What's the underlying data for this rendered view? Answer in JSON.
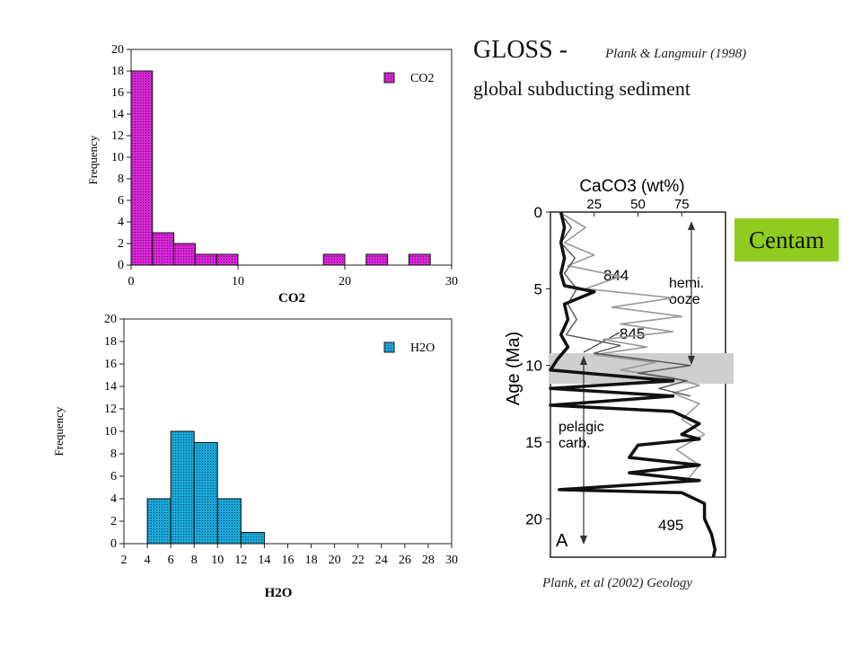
{
  "header": {
    "title": "GLOSS -",
    "citation": "Plank & Langmuir (1998)",
    "subtitle": "global subducting sediment"
  },
  "footer": {
    "citation": "Plank, et al (2002) Geology"
  },
  "badge": {
    "label": "Centam",
    "color": "#8fcc1f"
  },
  "chart_data": [
    {
      "type": "bar",
      "title": "",
      "xlabel": "CO2",
      "ylabel": "Frequency",
      "legend": [
        "CO2"
      ],
      "legend_position": "top-right",
      "color": "#d626d6",
      "xlim": [
        0,
        30
      ],
      "ylim": [
        0,
        20
      ],
      "x_ticks": [
        0,
        10,
        20,
        30
      ],
      "y_ticks": [
        0,
        2,
        4,
        6,
        8,
        10,
        12,
        14,
        16,
        18,
        20
      ],
      "bins": [
        {
          "x0": 0,
          "x1": 2,
          "value": 18
        },
        {
          "x0": 2,
          "x1": 4,
          "value": 3
        },
        {
          "x0": 4,
          "x1": 6,
          "value": 2
        },
        {
          "x0": 6,
          "x1": 8,
          "value": 1
        },
        {
          "x0": 8,
          "x1": 10,
          "value": 1
        },
        {
          "x0": 18,
          "x1": 20,
          "value": 1
        },
        {
          "x0": 22,
          "x1": 24,
          "value": 1
        },
        {
          "x0": 26,
          "x1": 28,
          "value": 1
        }
      ]
    },
    {
      "type": "bar",
      "title": "",
      "xlabel": "H2O",
      "ylabel": "Frequency",
      "legend": [
        "H2O"
      ],
      "legend_position": "top-right",
      "color": "#1aa6d6",
      "xlim": [
        2,
        30
      ],
      "ylim": [
        0,
        20
      ],
      "x_ticks": [
        2,
        4,
        6,
        8,
        10,
        12,
        14,
        16,
        18,
        20,
        22,
        24,
        26,
        28,
        30
      ],
      "y_ticks": [
        0,
        2,
        4,
        6,
        8,
        10,
        12,
        14,
        16,
        18,
        20
      ],
      "bins": [
        {
          "x0": 4,
          "x1": 6,
          "value": 4
        },
        {
          "x0": 6,
          "x1": 8,
          "value": 10
        },
        {
          "x0": 8,
          "x1": 10,
          "value": 9
        },
        {
          "x0": 10,
          "x1": 12,
          "value": 4
        },
        {
          "x0": 12,
          "x1": 14,
          "value": 1
        }
      ]
    },
    {
      "type": "line",
      "title": "CaCO3 (wt%)",
      "ylabel": "Age (Ma)",
      "panel_letter": "A",
      "xlim": [
        0,
        100
      ],
      "ylim": [
        0,
        22.5
      ],
      "y_reversed": true,
      "x_ticks": [
        25,
        50,
        75
      ],
      "y_ticks": [
        0,
        5,
        10,
        15,
        20
      ],
      "highlight_band": [
        9.2,
        11.2
      ],
      "labels": {
        "site_844": "844",
        "site_845": "845",
        "site_495": "495",
        "hemi_line1": "hemi.",
        "hemi_line2": "ooze",
        "pelagic_line1": "pelagic",
        "pelagic_line2": "carb."
      },
      "series": [
        {
          "name": "844",
          "color": "#999999",
          "points": [
            [
              5,
              0
            ],
            [
              20,
              1
            ],
            [
              8,
              2
            ],
            [
              25,
              2.8
            ],
            [
              10,
              3.5
            ],
            [
              40,
              4.2
            ],
            [
              20,
              5
            ],
            [
              70,
              5.6
            ],
            [
              35,
              6.2
            ],
            [
              75,
              6.8
            ],
            [
              40,
              7.3
            ],
            [
              70,
              7.8
            ],
            [
              30,
              8.3
            ],
            [
              55,
              8.8
            ],
            [
              25,
              9.3
            ],
            [
              60,
              9.8
            ],
            [
              40,
              10.3
            ],
            [
              70,
              10.8
            ],
            [
              85,
              11.3
            ],
            [
              70,
              11.8
            ],
            [
              85,
              12.5
            ],
            [
              75,
              13.5
            ],
            [
              88,
              14.5
            ],
            [
              72,
              15.5
            ],
            [
              85,
              16.5
            ],
            [
              78,
              17.5
            ]
          ]
        },
        {
          "name": "845",
          "color": "#555555",
          "points": [
            [
              5,
              0
            ],
            [
              12,
              1
            ],
            [
              6,
              2
            ],
            [
              14,
              3
            ],
            [
              8,
              4
            ],
            [
              15,
              5
            ],
            [
              10,
              6
            ],
            [
              15,
              7
            ],
            [
              9,
              8
            ],
            [
              40,
              8.7
            ],
            [
              25,
              9.2
            ],
            [
              80,
              10.0
            ],
            [
              50,
              10.5
            ],
            [
              78,
              11.0
            ],
            [
              62,
              11.5
            ],
            [
              80,
              12.0
            ]
          ]
        },
        {
          "name": "495",
          "color": "#111111",
          "points": [
            [
              6,
              0
            ],
            [
              8,
              1
            ],
            [
              6,
              2
            ],
            [
              8,
              3
            ],
            [
              6,
              4
            ],
            [
              8,
              4.8
            ],
            [
              25,
              5.2
            ],
            [
              8,
              6
            ],
            [
              10,
              7
            ],
            [
              6,
              8
            ],
            [
              10,
              8.8
            ],
            [
              4,
              9.6
            ],
            [
              0,
              10.3
            ],
            [
              70,
              11.0
            ],
            [
              0,
              11.5
            ],
            [
              70,
              12.0
            ],
            [
              0,
              12.6
            ],
            [
              70,
              13.0
            ],
            [
              85,
              13.8
            ],
            [
              75,
              14.5
            ],
            [
              85,
              14.8
            ],
            [
              50,
              15.2
            ],
            [
              45,
              16.0
            ],
            [
              85,
              16.5
            ],
            [
              45,
              17.0
            ],
            [
              85,
              17.5
            ],
            [
              5,
              18.1
            ],
            [
              75,
              18.3
            ],
            [
              88,
              19.0
            ],
            [
              88,
              20.0
            ],
            [
              92,
              21.0
            ],
            [
              94,
              22.0
            ],
            [
              93,
              22.5
            ]
          ]
        }
      ]
    }
  ]
}
